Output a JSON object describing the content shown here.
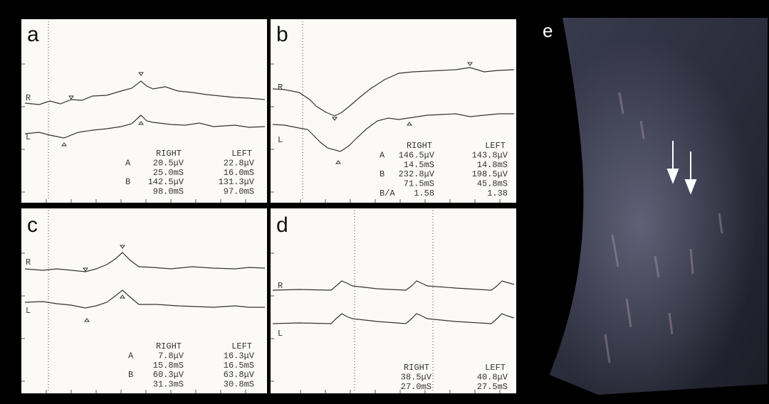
{
  "panels": [
    {
      "label": "a",
      "trace_labels": [
        "R",
        "L"
      ],
      "table": {
        "columns": [
          "RIGHT",
          "LEFT"
        ],
        "rows": [
          {
            "label": "A",
            "values": [
              "20.5μV",
              "22.8μV"
            ]
          },
          {
            "values": [
              "25.0mS",
              "16.0mS"
            ]
          },
          {
            "label": "B",
            "values": [
              "142.5μV",
              "131.3μV"
            ]
          },
          {
            "values": [
              "98.0mS",
              "97.0mS"
            ]
          }
        ]
      }
    },
    {
      "label": "b",
      "trace_labels": [
        "R",
        "L"
      ],
      "table": {
        "columns": [
          "RIGHT",
          "LEFT"
        ],
        "rows": [
          {
            "label": "A",
            "values": [
              "146.5μV",
              "143.8μV"
            ]
          },
          {
            "values": [
              "14.5mS",
              "14.8mS"
            ]
          },
          {
            "label": "B",
            "values": [
              "232.8μV",
              "198.5μV"
            ]
          },
          {
            "values": [
              "71.5mS",
              "45.8mS"
            ]
          },
          {
            "label": "B/A",
            "values": [
              "1.58",
              "1.38"
            ]
          }
        ]
      }
    },
    {
      "label": "c",
      "trace_labels": [
        "R",
        "L"
      ],
      "table": {
        "columns": [
          "RIGHT",
          "LEFT"
        ],
        "rows": [
          {
            "label": "A",
            "values": [
              "7.8μV",
              "16.3μV"
            ]
          },
          {
            "values": [
              "15.8mS",
              "16.5mS"
            ]
          },
          {
            "label": "B",
            "values": [
              "60.3μV",
              "63.8μV"
            ]
          },
          {
            "values": [
              "31.3mS",
              "30.8mS"
            ]
          }
        ]
      }
    },
    {
      "label": "d",
      "trace_labels": [
        "R",
        "L"
      ],
      "table": {
        "columns": [
          "RIGHT",
          "LEFT"
        ],
        "rows": [
          {
            "values": [
              "38.5μV",
              "40.8μV"
            ]
          },
          {
            "values": [
              "27.0mS",
              "27.5mS"
            ]
          }
        ]
      }
    },
    {
      "label": "e"
    }
  ]
}
